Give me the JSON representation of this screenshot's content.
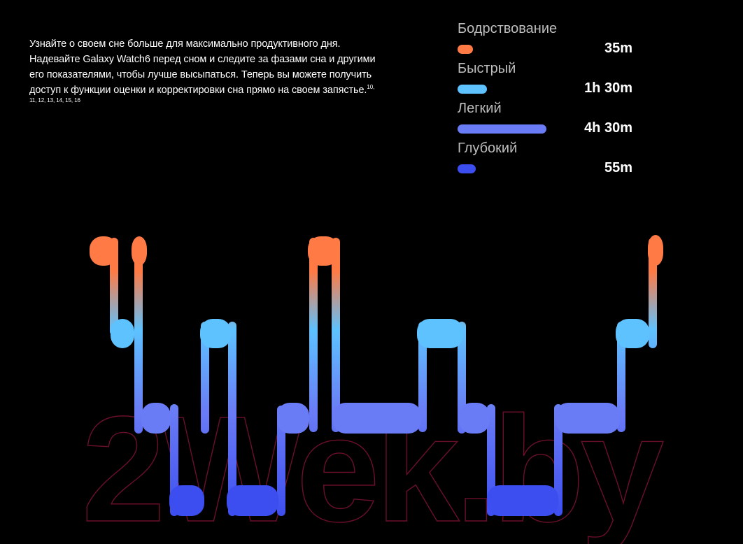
{
  "intro": {
    "text": "Узнайте о своем сне больше для максимально продуктивного дня. Надевайте Galaxy Watch6 перед сном и следите за фазами сна и другими его показателями, чтобы лучше высыпаться. Теперь вы можете получить доступ к функции оценки и корректировки сна прямо на своем запястье.",
    "refs_inline": "10,",
    "refs_line": "11, 12, 13, 14, 15, 16"
  },
  "stages": [
    {
      "label": "Бодрствование",
      "value": "35m",
      "minutes": 35,
      "color": "#ff7a45"
    },
    {
      "label": "Быстрый",
      "value": "1h 30m",
      "minutes": 90,
      "color": "#5ec2ff"
    },
    {
      "label": "Легкий",
      "value": "4h 30m",
      "minutes": 270,
      "color": "#6a7cf5"
    },
    {
      "label": "Глубокий",
      "value": "55m",
      "minutes": 55,
      "color": "#3d4ef0"
    }
  ],
  "watermark": "2Wek.by"
}
